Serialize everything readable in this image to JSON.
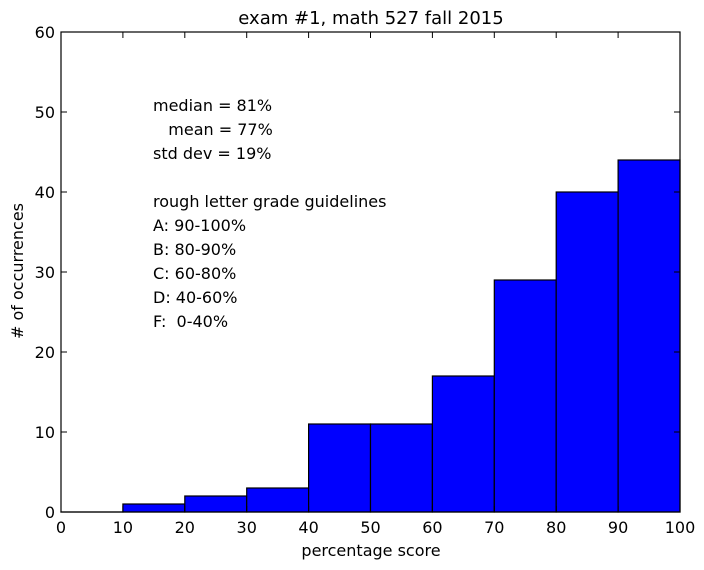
{
  "chart_data": {
    "type": "bar",
    "title": "exam #1, math 527 fall 2015",
    "xlabel": "percentage score",
    "ylabel": "# of occurrences",
    "xlim": [
      0,
      100
    ],
    "ylim": [
      0,
      60
    ],
    "bin_edges": [
      0,
      10,
      20,
      30,
      40,
      50,
      60,
      70,
      80,
      90,
      100
    ],
    "values": [
      0,
      1,
      2,
      3,
      11,
      11,
      17,
      29,
      40,
      44
    ],
    "x_ticks": [
      "0",
      "10",
      "20",
      "30",
      "40",
      "50",
      "60",
      "70",
      "80",
      "90",
      "100"
    ],
    "y_ticks": [
      "0",
      "10",
      "20",
      "30",
      "40",
      "50",
      "60"
    ],
    "bar_color": "#0000ff",
    "edge_color": "#000000",
    "grid": false,
    "annotations": [
      "median = 81%",
      "   mean = 77%",
      "std dev = 19%",
      "",
      "rough letter grade guidelines",
      "A: 90-100%",
      "B: 80-90%",
      "C: 60-80%",
      "D: 40-60%",
      "F:  0-40%"
    ]
  }
}
